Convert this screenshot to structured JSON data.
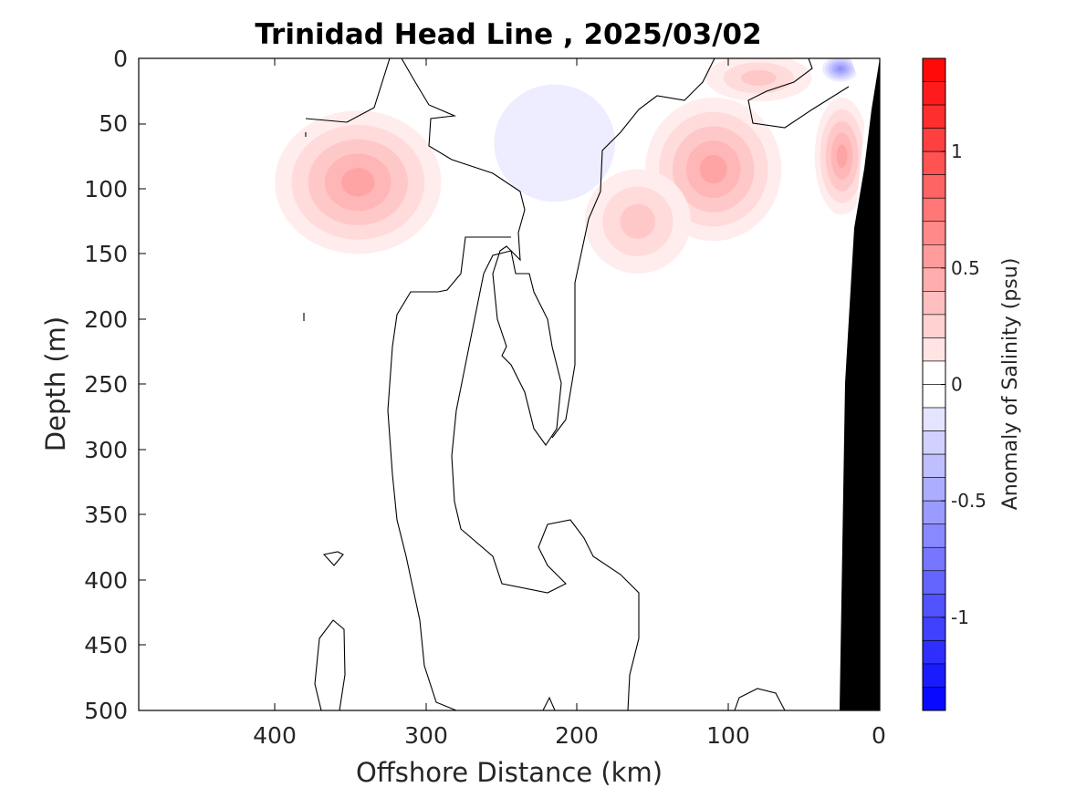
{
  "chart_data": {
    "type": "contour",
    "title": "Trinidad Head Line , 2025/03/02",
    "xlabel": "Offshore Distance (km)",
    "ylabel": "Depth (m)",
    "colorbar_label": "Anomaly of Salinity (psu)",
    "xlim": [
      490,
      0
    ],
    "ylim": [
      500,
      0
    ],
    "x_reversed": true,
    "y_reversed": true,
    "xticks": [
      400,
      300,
      200,
      100,
      0
    ],
    "xtick_labels": [
      "400",
      "300",
      "200",
      "100",
      "0"
    ],
    "yticks": [
      0,
      50,
      100,
      150,
      200,
      250,
      300,
      350,
      400,
      450,
      500
    ],
    "ytick_labels": [
      "0",
      "50",
      "100",
      "150",
      "200",
      "250",
      "300",
      "350",
      "400",
      "450",
      "500"
    ],
    "colorbar": {
      "range": [
        -1.4,
        1.4
      ],
      "step": 0.1,
      "ticks": [
        -1,
        -0.5,
        0,
        0.5,
        1
      ],
      "tick_labels": [
        "-1",
        "-0.5",
        "0",
        "0.5",
        "1"
      ],
      "negative_color": "#0000ff",
      "positive_color": "#ff0000",
      "zero_color": "#ffffff"
    },
    "bathymetry_color": "#000000",
    "anomaly_patches": [
      {
        "x": 345,
        "y": 95,
        "rx": 55,
        "ry": 55,
        "value": 0.45
      },
      {
        "x": 110,
        "y": 85,
        "rx": 45,
        "ry": 55,
        "value": 0.45
      },
      {
        "x": 160,
        "y": 125,
        "rx": 35,
        "ry": 40,
        "value": 0.35
      },
      {
        "x": 80,
        "y": 15,
        "rx": 35,
        "ry": 18,
        "value": 0.25
      },
      {
        "x": 25,
        "y": 75,
        "rx": 18,
        "ry": 45,
        "value": 0.45
      },
      {
        "x": 215,
        "y": 65,
        "rx": 40,
        "ry": 45,
        "value": -0.1
      },
      {
        "x": 26,
        "y": 8,
        "rx": 12,
        "ry": 10,
        "value": -0.6
      }
    ]
  }
}
